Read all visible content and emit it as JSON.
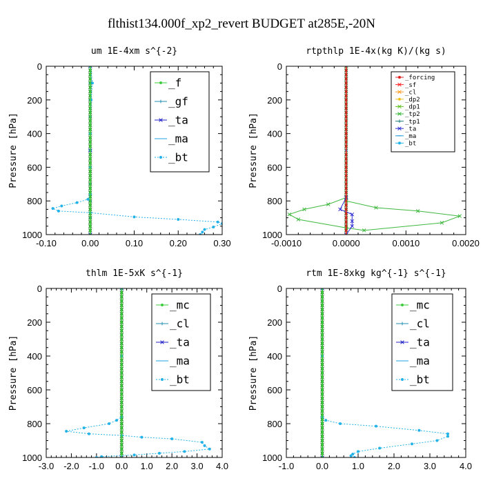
{
  "figure_title": "flthist134.000f_xp2_revert  BUDGET at285E,-20N",
  "chart_data": [
    {
      "type": "line",
      "title": "um  1E-4xm s^{-2}",
      "ylabel": "Pressure [hPa]",
      "xlim": [
        -0.1,
        0.3
      ],
      "ylim": [
        1000,
        0
      ],
      "xticks": [
        -0.1,
        0.0,
        0.1,
        0.2,
        0.3
      ],
      "xtick_labels": [
        "-0.10",
        "0.00",
        "0.10",
        "0.20",
        "0.30"
      ],
      "yticks": [
        0,
        200,
        400,
        600,
        800,
        1000
      ],
      "ytick_labels": [
        "0",
        "200",
        "400",
        "600",
        "800",
        "1000"
      ],
      "legend_size": "large",
      "series": [
        {
          "name": "_f",
          "color": "#3ccc3c",
          "marker": "o",
          "points": [
            [
              0.0,
              0
            ],
            [
              0.0,
              100
            ],
            [
              0.0,
              200
            ],
            [
              0.0,
              300
            ],
            [
              0.0,
              400
            ],
            [
              0.0,
              500
            ],
            [
              0.0,
              600
            ],
            [
              0.0,
              700
            ],
            [
              0.0,
              800
            ],
            [
              0.0,
              900
            ],
            [
              0.0,
              1000
            ]
          ]
        },
        {
          "name": "_gf",
          "color": "#1f8fb0",
          "marker": "+",
          "points": [
            [
              0.0,
              0
            ],
            [
              0.0,
              100
            ],
            [
              0.0,
              200
            ],
            [
              0.0,
              300
            ],
            [
              0.0,
              400
            ],
            [
              0.0,
              500
            ],
            [
              0.0,
              600
            ],
            [
              0.0,
              700
            ],
            [
              0.0,
              800
            ],
            [
              0.0,
              900
            ],
            [
              0.0,
              1000
            ]
          ]
        },
        {
          "name": "_ta",
          "color": "#2020c8",
          "marker": "x",
          "points": [
            [
              0.0,
              0
            ],
            [
              0.0,
              500
            ],
            [
              0.0,
              1000
            ]
          ]
        },
        {
          "name": "_ma",
          "color": "#1fa0e0",
          "marker": "-",
          "points": [
            [
              0.0,
              0
            ],
            [
              0.0,
              500
            ],
            [
              0.0,
              1000
            ]
          ]
        },
        {
          "name": "_bt",
          "color": "#22b2e8",
          "marker": "o",
          "dashed": true,
          "points": [
            [
              0.0,
              0
            ],
            [
              0.005,
              100
            ],
            [
              0.002,
              200
            ],
            [
              0.0,
              400
            ],
            [
              0.0,
              600
            ],
            [
              0.0,
              760
            ],
            [
              -0.005,
              790
            ],
            [
              -0.03,
              810
            ],
            [
              -0.065,
              830
            ],
            [
              -0.085,
              845
            ],
            [
              -0.072,
              860
            ],
            [
              0.0,
              870
            ],
            [
              0.1,
              895
            ],
            [
              0.2,
              910
            ],
            [
              0.29,
              925
            ],
            [
              0.3,
              935
            ],
            [
              0.28,
              955
            ],
            [
              0.26,
              970
            ],
            [
              0.255,
              985
            ],
            [
              0.25,
              1000
            ]
          ]
        }
      ]
    },
    {
      "type": "line",
      "title": "rtpthlp  1E-4x(kg K)/(kg s)",
      "ylabel": "Pressure [hPa]",
      "xlim": [
        -0.001,
        0.002
      ],
      "ylim": [
        1000,
        0
      ],
      "xticks": [
        -0.001,
        0.0,
        0.001,
        0.002
      ],
      "xtick_labels": [
        "-0.0010",
        "0.0000",
        "0.0010",
        "0.0020"
      ],
      "yticks": [
        0,
        200,
        400,
        600,
        800,
        1000
      ],
      "ytick_labels": [
        "0",
        "200",
        "400",
        "600",
        "800",
        "1000"
      ],
      "legend_size": "small",
      "series": [
        {
          "name": "_forcing",
          "color": "#e02020",
          "marker": "o",
          "points": [
            [
              0.0,
              0
            ],
            [
              0.0,
              200
            ],
            [
              0.0,
              400
            ],
            [
              0.0,
              600
            ],
            [
              0.0,
              800
            ],
            [
              0.0,
              1000
            ]
          ]
        },
        {
          "name": "_sf",
          "color": "#ff2020",
          "marker": "x",
          "points": [
            [
              0.0,
              0
            ],
            [
              0.0,
              1000
            ]
          ]
        },
        {
          "name": "_cl",
          "color": "#ff9a20",
          "marker": "x",
          "points": [
            [
              0.0,
              0
            ],
            [
              0.0,
              1000
            ]
          ]
        },
        {
          "name": "_dp2",
          "color": "#f0c020",
          "marker": "o",
          "points": [
            [
              0.0,
              0
            ],
            [
              0.0,
              1000
            ]
          ]
        },
        {
          "name": "_dp1",
          "color": "#60c020",
          "marker": "x",
          "points": [
            [
              0.0,
              0
            ],
            [
              0.0,
              1000
            ]
          ]
        },
        {
          "name": "_tp2",
          "color": "#3cb83c",
          "marker": "x",
          "points": [
            [
              0.0,
              0
            ],
            [
              0.0,
              780
            ],
            [
              -0.0003,
              820
            ],
            [
              -0.0007,
              850
            ],
            [
              -0.00095,
              880
            ],
            [
              -0.0008,
              910
            ],
            [
              0.0,
              960
            ],
            [
              0.0003,
              975
            ],
            [
              0.0016,
              930
            ],
            [
              0.0019,
              890
            ],
            [
              0.0012,
              860
            ],
            [
              0.0005,
              840
            ],
            [
              0.0,
              800
            ],
            [
              0.0,
              1000
            ]
          ]
        },
        {
          "name": "_tp1",
          "color": "#208080",
          "marker": "+",
          "points": [
            [
              0.0,
              0
            ],
            [
              0.0,
              1000
            ]
          ]
        },
        {
          "name": "_ta",
          "color": "#2a2ad0",
          "marker": "x",
          "points": [
            [
              0.0,
              780
            ],
            [
              -0.0001,
              850
            ],
            [
              0.0001,
              880
            ],
            [
              0.0001,
              920
            ],
            [
              0.0001,
              950
            ],
            [
              0.0,
              1000
            ]
          ]
        },
        {
          "name": "_ma",
          "color": "#1a98d8",
          "marker": "-",
          "points": [
            [
              0.0,
              0
            ],
            [
              0.0,
              1000
            ]
          ]
        },
        {
          "name": "_bt",
          "color": "#22b2e8",
          "marker": "o",
          "points": [
            [
              0.0,
              0
            ],
            [
              0.0,
              500
            ],
            [
              0.0,
              1000
            ]
          ]
        }
      ]
    },
    {
      "type": "line",
      "title": "thlm  1E-5xK s^{-1}",
      "ylabel": "Pressure [hPa]",
      "xlim": [
        -3.0,
        4.0
      ],
      "ylim": [
        1000,
        0
      ],
      "xticks": [
        -3,
        -2,
        -1,
        0,
        1,
        2,
        3,
        4
      ],
      "xtick_labels": [
        "-3.0",
        "-2.0",
        "-1.0",
        "0.0",
        "1.0",
        "2.0",
        "3.0",
        "4.0"
      ],
      "yticks": [
        0,
        200,
        400,
        600,
        800,
        1000
      ],
      "ytick_labels": [
        "0",
        "200",
        "400",
        "600",
        "800",
        "1000"
      ],
      "legend_size": "large",
      "series": [
        {
          "name": "_mc",
          "color": "#3ccc3c",
          "marker": "o",
          "points": [
            [
              0.0,
              0
            ],
            [
              0.0,
              200
            ],
            [
              0.0,
              400
            ],
            [
              0.0,
              600
            ],
            [
              0.0,
              800
            ],
            [
              0.0,
              1000
            ]
          ]
        },
        {
          "name": "_cl",
          "color": "#1f8fb0",
          "marker": "+",
          "points": [
            [
              0.0,
              0
            ],
            [
              0.0,
              1000
            ]
          ]
        },
        {
          "name": "_ta",
          "color": "#2020c8",
          "marker": "x",
          "points": [
            [
              0.0,
              0
            ],
            [
              0.0,
              1000
            ]
          ]
        },
        {
          "name": "_ma",
          "color": "#1fa0e0",
          "marker": "-",
          "points": [
            [
              0.0,
              0
            ],
            [
              0.0,
              1000
            ]
          ]
        },
        {
          "name": "_bt",
          "color": "#22b2e8",
          "marker": "o",
          "dashed": true,
          "points": [
            [
              0.0,
              0
            ],
            [
              0.0,
              400
            ],
            [
              0.0,
              760
            ],
            [
              -0.2,
              780
            ],
            [
              -0.5,
              800
            ],
            [
              -1.5,
              825
            ],
            [
              -2.2,
              845
            ],
            [
              -1.3,
              860
            ],
            [
              0.0,
              870
            ],
            [
              0.8,
              880
            ],
            [
              2.0,
              890
            ],
            [
              3.2,
              910
            ],
            [
              3.3,
              930
            ],
            [
              3.5,
              950
            ],
            [
              2.5,
              965
            ],
            [
              1.5,
              975
            ],
            [
              0.5,
              985
            ],
            [
              -0.8,
              995
            ],
            [
              -1.0,
              1000
            ]
          ]
        }
      ]
    },
    {
      "type": "line",
      "title": "rtm  1E-8xkg kg^{-1} s^{-1}",
      "ylabel": "Pressure [hPa]",
      "xlim": [
        -1.0,
        4.0
      ],
      "ylim": [
        1000,
        0
      ],
      "xticks": [
        -1,
        0,
        1,
        2,
        3,
        4
      ],
      "xtick_labels": [
        "-1.0",
        "0.0",
        "1.0",
        "2.0",
        "3.0",
        "4.0"
      ],
      "yticks": [
        0,
        200,
        400,
        600,
        800,
        1000
      ],
      "ytick_labels": [
        "0",
        "200",
        "400",
        "600",
        "800",
        "1000"
      ],
      "legend_size": "large",
      "series": [
        {
          "name": "_mc",
          "color": "#3ccc3c",
          "marker": "o",
          "points": [
            [
              0.0,
              0
            ],
            [
              0.0,
              200
            ],
            [
              0.0,
              400
            ],
            [
              0.0,
              600
            ],
            [
              0.0,
              800
            ],
            [
              0.0,
              1000
            ]
          ]
        },
        {
          "name": "_cl",
          "color": "#1f8fb0",
          "marker": "+",
          "points": [
            [
              0.0,
              0
            ],
            [
              0.0,
              1000
            ]
          ]
        },
        {
          "name": "_ta",
          "color": "#2020c8",
          "marker": "x",
          "points": [
            [
              0.0,
              0
            ],
            [
              0.0,
              1000
            ]
          ]
        },
        {
          "name": "_ma",
          "color": "#1fa0e0",
          "marker": "-",
          "points": [
            [
              0.0,
              0
            ],
            [
              0.0,
              1000
            ]
          ]
        },
        {
          "name": "_bt",
          "color": "#22b2e8",
          "marker": "o",
          "dashed": true,
          "points": [
            [
              0.0,
              0
            ],
            [
              0.0,
              400
            ],
            [
              0.0,
              760
            ],
            [
              0.1,
              780
            ],
            [
              0.5,
              800
            ],
            [
              1.5,
              815
            ],
            [
              2.7,
              840
            ],
            [
              3.5,
              860
            ],
            [
              3.5,
              875
            ],
            [
              3.2,
              900
            ],
            [
              2.5,
              920
            ],
            [
              1.6,
              945
            ],
            [
              1.0,
              965
            ],
            [
              0.85,
              980
            ],
            [
              0.8,
              990
            ],
            [
              0.9,
              1000
            ]
          ]
        }
      ]
    }
  ]
}
